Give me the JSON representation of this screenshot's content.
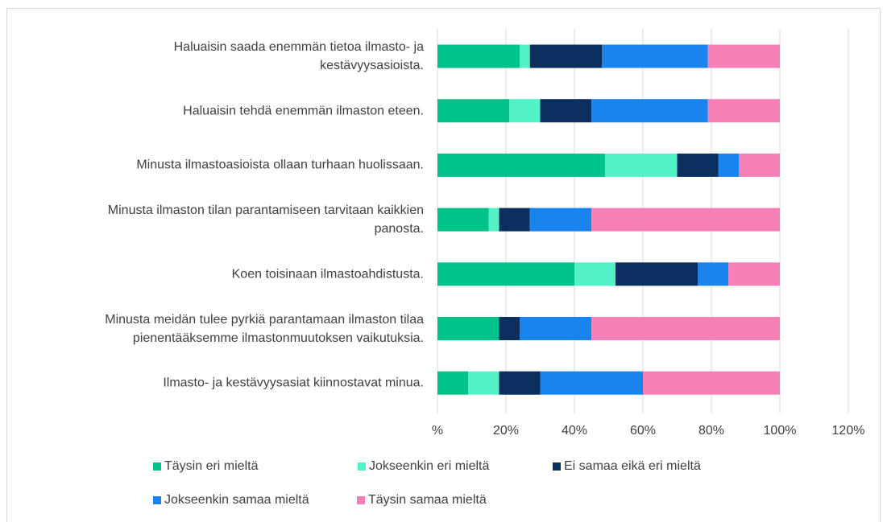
{
  "chart_data": {
    "type": "stacked-bar",
    "orientation": "horizontal",
    "categories": [
      "Haluaisin saada enemmän tietoa ilmasto- ja\nkestävyysasioista.",
      "Haluaisin tehdä enemmän ilmaston eteen.",
      "Minusta ilmastoasioista ollaan turhaan huolissaan.",
      "Minusta ilmaston tilan parantamiseen tarvitaan kaikkien\npanosta.",
      "Koen toisinaan ilmastoahdistusta.",
      "Minusta meidän tulee pyrkiä parantamaan ilmaston tilaa\npienentääksemme ilmastonmuutoksen vaikutuksia.",
      "Ilmasto- ja kestävyysasiat kiinnostavat minua."
    ],
    "series": [
      {
        "name": "Täysin eri mieltä",
        "color": "#00c389",
        "values": [
          24,
          21,
          49,
          15,
          40,
          18,
          9
        ]
      },
      {
        "name": "Jokseenkin eri mieltä",
        "color": "#52f2c6",
        "values": [
          3,
          9,
          21,
          3,
          12,
          0,
          9
        ]
      },
      {
        "name": "Ei samaa eikä eri mieltä",
        "color": "#0b2f5e",
        "values": [
          21,
          15,
          12,
          9,
          24,
          6,
          12
        ]
      },
      {
        "name": "Jokseenkin samaa mieltä",
        "color": "#1a84ee",
        "values": [
          31,
          34,
          6,
          18,
          9,
          21,
          30
        ]
      },
      {
        "name": "Täysin samaa mieltä",
        "color": "#f580b8",
        "values": [
          21,
          21,
          12,
          55,
          15,
          55,
          40
        ]
      }
    ],
    "xlim": [
      0,
      120
    ],
    "xticks": [
      {
        "value": 0,
        "label": "%"
      },
      {
        "value": 20,
        "label": "20%"
      },
      {
        "value": 40,
        "label": "40%"
      },
      {
        "value": 60,
        "label": "60%"
      },
      {
        "value": 80,
        "label": "80%"
      },
      {
        "value": 100,
        "label": "100%"
      },
      {
        "value": 120,
        "label": "120%"
      }
    ],
    "grid": true
  }
}
